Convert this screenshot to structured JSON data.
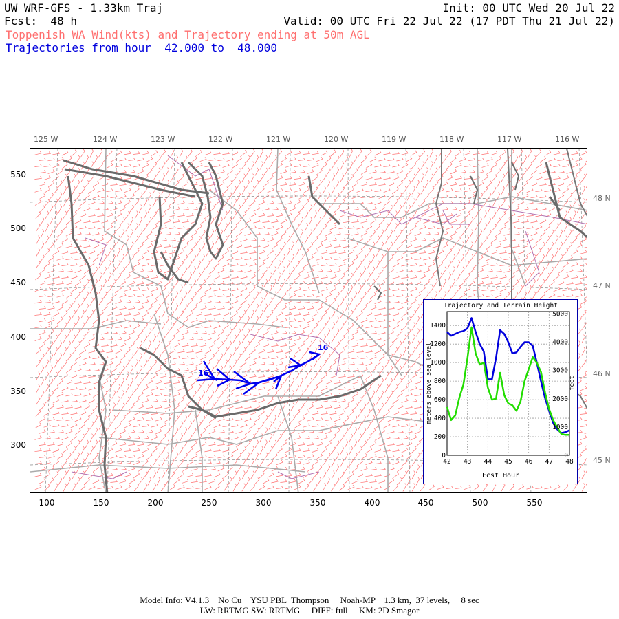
{
  "header": {
    "title": "UW WRF-GFS - 1.33km Traj",
    "init": "Init: 00 UTC Wed 20 Jul 22",
    "fcst": "Fcst:  48 h",
    "valid": "Valid: 00 UTC Fri 22 Jul 22 (17 PDT Thu 21 Jul 22)",
    "subtitle1": "Toppenish WA Wind(kts) and Trajectory ending at 50m AGL",
    "subtitle2": "Trajectories from hour  42.000 to  48.000"
  },
  "map": {
    "top_lon_labels": [
      "125 W",
      "124 W",
      "123 W",
      "122 W",
      "121 W",
      "120 W",
      "119 W",
      "118 W",
      "117 W",
      "116 W"
    ],
    "right_lat_labels": [
      "48 N",
      "47 N",
      "46 N",
      "45 N"
    ],
    "x_ticks": [
      "100",
      "150",
      "200",
      "250",
      "300",
      "350",
      "400",
      "450",
      "500",
      "550"
    ],
    "y_ticks": [
      "550",
      "500",
      "450",
      "400",
      "350",
      "300"
    ],
    "trajectory_labels": [
      "16",
      "16"
    ],
    "colors": {
      "wind_barbs": "#ff6f6f",
      "coast": "#6a6a6a",
      "trajectory": "#0000ee",
      "county": "#b070b0",
      "boundary": "#aaaaaa"
    }
  },
  "inset": {
    "title": "Trajectory and Terrain Height",
    "xlabel": "Fcst Hour",
    "ylabel_left": "meters above sea level",
    "ylabel_right": "feet",
    "x_ticks": [
      "42",
      "43",
      "44",
      "45",
      "46",
      "47",
      "48"
    ],
    "y_left_ticks": [
      "0",
      "200",
      "400",
      "600",
      "800",
      "1000",
      "1200",
      "1400"
    ],
    "y_right_ticks": [
      "0",
      "1000",
      "2000",
      "3000",
      "4000",
      "5000"
    ]
  },
  "chart_data": {
    "type": "line",
    "title": "Trajectory and Terrain Height",
    "xlabel": "Fcst Hour",
    "ylabel": "meters above sea level",
    "xlim": [
      42,
      48
    ],
    "ylim": [
      0,
      1550
    ],
    "series": [
      {
        "color": "#0000dd",
        "x": [
          42,
          42.2,
          42.4,
          42.6,
          42.8,
          43,
          43.2,
          43.4,
          43.6,
          43.8,
          44,
          44.2,
          44.4,
          44.6,
          44.8,
          45,
          45.2,
          45.4,
          45.6,
          45.8,
          46,
          46.2,
          46.4,
          46.6,
          46.8,
          47,
          47.2,
          47.4,
          47.6,
          47.8,
          48
        ],
        "y": [
          1330,
          1290,
          1310,
          1330,
          1340,
          1370,
          1480,
          1330,
          1200,
          1120,
          820,
          820,
          1050,
          1350,
          1310,
          1220,
          1100,
          1110,
          1170,
          1220,
          1220,
          1180,
          1000,
          800,
          620,
          480,
          350,
          280,
          240,
          250,
          270
        ]
      },
      {
        "color": "#22dd00",
        "x": [
          42,
          42.2,
          42.4,
          42.6,
          42.8,
          43,
          43.2,
          43.4,
          43.6,
          43.8,
          44,
          44.2,
          44.4,
          44.6,
          44.8,
          45,
          45.2,
          45.4,
          45.6,
          45.8,
          46,
          46.2,
          46.4,
          46.6,
          46.8,
          47,
          47.2,
          47.4,
          47.6,
          47.8,
          48
        ],
        "y": [
          520,
          380,
          430,
          620,
          760,
          1050,
          1380,
          1100,
          980,
          1000,
          730,
          600,
          610,
          890,
          650,
          560,
          540,
          480,
          580,
          800,
          930,
          1060,
          1000,
          900,
          680,
          500,
          380,
          300,
          230,
          220,
          220
        ]
      }
    ]
  },
  "footer": {
    "line1": "Model Info: V4.1.3    No Cu    YSU PBL  Thompson     Noah-MP    1.3 km,  37 levels,     8 sec",
    "line2": "LW: RRTMG SW: RRTMG     DIFF: full     KM: 2D Smagor"
  }
}
